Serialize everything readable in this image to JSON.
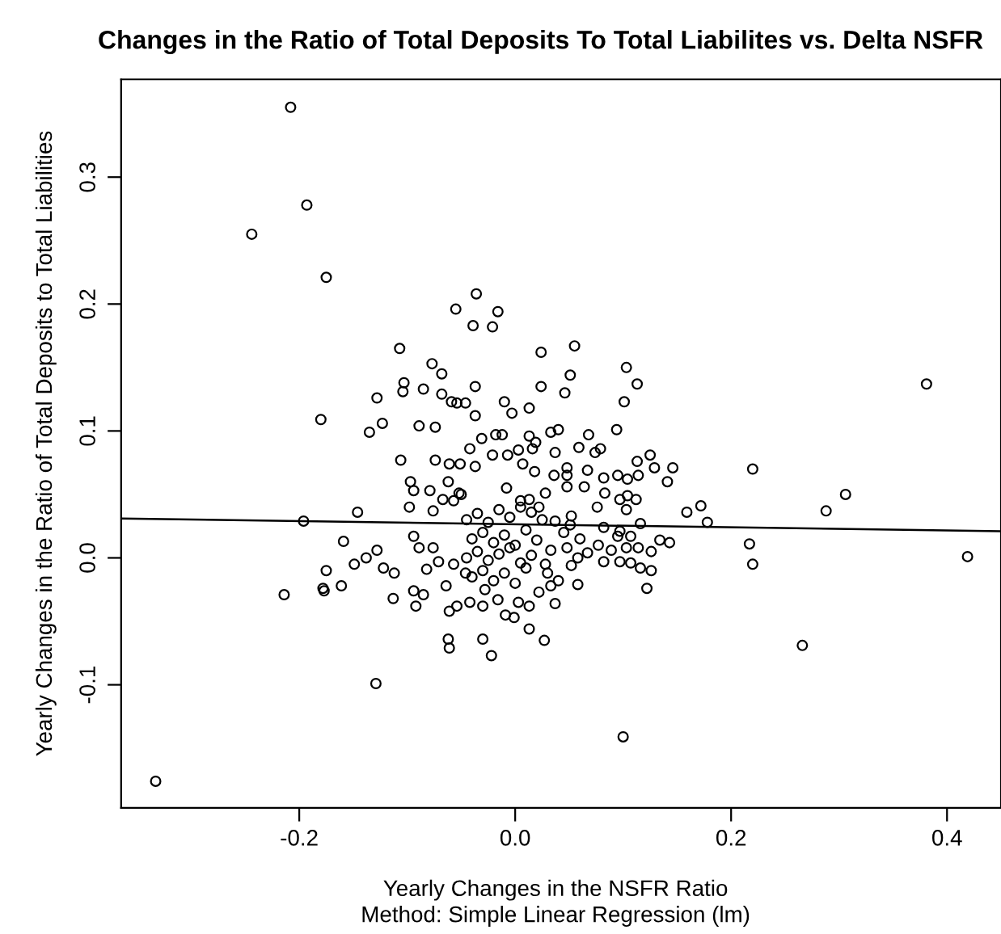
{
  "chart_data": {
    "type": "scatter",
    "title": "Changes in the Ratio of Total Deposits To Total Liabilites vs. Delta NSFR",
    "xlabel": "Yearly Changes in the NSFR Ratio",
    "ylabel": "Yearly Changes in the Ratio of Total Deposits to Total Liabilities",
    "annotations": [
      "Method: Simple Linear Regression (lm)"
    ],
    "xlim": [
      -0.365,
      0.45
    ],
    "ylim": [
      -0.197,
      0.377
    ],
    "xticks": [
      {
        "value": -0.2,
        "label": "-0.2"
      },
      {
        "value": 0,
        "label": "0.0"
      },
      {
        "value": 0.2,
        "label": "0.2"
      },
      {
        "value": 0.4,
        "label": "0.4"
      }
    ],
    "yticks": [
      {
        "value": -0.1,
        "label": "-0.1"
      },
      {
        "value": 0,
        "label": "0.0"
      },
      {
        "value": 0.1,
        "label": "0.1"
      },
      {
        "value": 0.2,
        "label": "0.2"
      },
      {
        "value": 0.3,
        "label": "0.3"
      }
    ],
    "grid": false,
    "legend": false,
    "marker": "circle",
    "series": [
      {
        "color": "#000000",
        "x": [
          -0.333,
          -0.244,
          -0.193,
          -0.208,
          -0.175,
          -0.18,
          -0.196,
          -0.214,
          -0.177,
          -0.129,
          0.266,
          0.1,
          0.381,
          0.419,
          0.306,
          0.288,
          0.22,
          0.217,
          0.22,
          -0.036,
          -0.055,
          -0.016,
          -0.039,
          -0.021,
          -0.107,
          -0.077,
          -0.068,
          -0.103,
          -0.104,
          -0.085,
          -0.068,
          -0.059,
          -0.054,
          -0.046,
          -0.037,
          -0.037,
          -0.01,
          -0.003,
          0.013,
          -0.128,
          -0.123,
          -0.135,
          -0.089,
          -0.074,
          -0.106,
          -0.074,
          -0.061,
          -0.051,
          -0.037,
          -0.031,
          -0.042,
          -0.018,
          -0.012,
          -0.021,
          -0.007,
          0.003,
          0.013,
          0.024,
          0.055,
          0.051,
          0.024,
          0.046,
          0.103,
          0.113,
          0.101,
          0.094,
          0.068,
          0.033,
          0.04,
          0.019,
          0.059,
          0.079,
          0.074,
          0.037,
          0.016,
          0.113,
          0.125,
          0.129,
          0.146,
          0.048,
          0.067,
          -0.146,
          -0.097,
          -0.094,
          -0.079,
          -0.067,
          -0.098,
          -0.076,
          -0.057,
          -0.052,
          -0.062,
          -0.159,
          -0.175,
          -0.178,
          -0.161,
          -0.149,
          -0.138,
          -0.128,
          -0.122,
          -0.112,
          -0.113,
          -0.094,
          -0.089,
          -0.076,
          -0.082,
          -0.094,
          -0.092,
          -0.085,
          -0.064,
          -0.061,
          -0.054,
          -0.062,
          -0.061,
          -0.022,
          -0.03,
          -0.009,
          -0.001,
          0.013,
          -0.042,
          -0.03,
          -0.016,
          0.003,
          -0.057,
          -0.046,
          -0.071,
          0.141,
          0.114,
          0.095,
          0.104,
          0.082,
          0.083,
          0.097,
          0.104,
          0.112,
          0.103,
          0.076,
          0.064,
          0.048,
          0.048,
          0.159,
          0.172,
          0.178,
          0.116,
          0.082,
          0.097,
          0.095,
          0.107,
          0.134,
          0.143,
          0.077,
          0.089,
          0.103,
          0.114,
          0.097,
          0.107,
          0.116,
          0.126,
          0.126,
          0.122,
          0.082,
          0.067,
          0.058,
          0.058,
          0.052,
          0.037,
          0.013,
          0.027,
          0.022,
          0.028,
          0.033,
          0.048,
          0.051,
          0.037,
          0.052,
          0.022,
          0.013,
          0.028,
          0.018,
          0.007,
          0.036,
          -0.045,
          -0.035,
          -0.025,
          -0.015,
          -0.005,
          0.005,
          0.015,
          -0.04,
          -0.03,
          -0.02,
          -0.01,
          0.0,
          0.01,
          0.02,
          -0.045,
          -0.035,
          -0.025,
          -0.015,
          -0.005,
          0.005,
          0.015,
          0.025,
          -0.04,
          -0.03,
          -0.02,
          -0.01,
          0.0,
          0.01,
          0.03,
          0.04,
          -0.05,
          -0.008,
          0.005,
          0.045,
          0.06,
          -0.028,
          0.033
        ],
        "values": [
          -0.176,
          0.255,
          0.278,
          0.355,
          0.221,
          0.109,
          0.029,
          -0.029,
          -0.026,
          -0.099,
          -0.069,
          -0.141,
          0.137,
          0.001,
          0.05,
          0.037,
          0.07,
          0.011,
          -0.005,
          0.208,
          0.196,
          0.194,
          0.183,
          0.182,
          0.165,
          0.153,
          0.145,
          0.138,
          0.131,
          0.133,
          0.129,
          0.123,
          0.122,
          0.122,
          0.135,
          0.112,
          0.123,
          0.114,
          0.118,
          0.126,
          0.106,
          0.099,
          0.104,
          0.103,
          0.077,
          0.077,
          0.074,
          0.074,
          0.072,
          0.094,
          0.086,
          0.097,
          0.097,
          0.081,
          0.081,
          0.085,
          0.096,
          0.162,
          0.167,
          0.144,
          0.135,
          0.13,
          0.15,
          0.137,
          0.123,
          0.101,
          0.097,
          0.099,
          0.101,
          0.091,
          0.087,
          0.086,
          0.083,
          0.083,
          0.086,
          0.076,
          0.081,
          0.071,
          0.071,
          0.071,
          0.069,
          0.036,
          0.06,
          0.053,
          0.053,
          0.046,
          0.04,
          0.037,
          0.045,
          0.051,
          0.06,
          0.013,
          -0.01,
          -0.024,
          -0.022,
          -0.005,
          0.0,
          0.006,
          -0.008,
          -0.012,
          -0.032,
          0.017,
          0.008,
          0.008,
          -0.009,
          -0.026,
          -0.038,
          -0.029,
          -0.022,
          -0.042,
          -0.038,
          -0.064,
          -0.071,
          -0.077,
          -0.064,
          -0.045,
          -0.047,
          -0.056,
          -0.035,
          -0.038,
          -0.033,
          -0.035,
          -0.005,
          -0.012,
          -0.003,
          0.06,
          0.065,
          0.065,
          0.062,
          0.063,
          0.051,
          0.046,
          0.049,
          0.046,
          0.038,
          0.04,
          0.056,
          0.065,
          0.056,
          0.036,
          0.041,
          0.028,
          0.027,
          0.024,
          0.021,
          0.017,
          0.017,
          0.014,
          0.012,
          0.01,
          0.006,
          0.008,
          0.008,
          -0.003,
          -0.004,
          -0.008,
          0.005,
          -0.01,
          -0.024,
          -0.003,
          0.004,
          0.0,
          -0.021,
          -0.006,
          -0.036,
          -0.038,
          -0.065,
          -0.027,
          -0.005,
          0.006,
          0.008,
          0.026,
          0.029,
          0.033,
          0.04,
          0.046,
          0.051,
          0.068,
          0.074,
          0.065,
          0.0,
          0.005,
          -0.002,
          0.003,
          0.008,
          -0.004,
          0.002,
          0.015,
          0.02,
          0.012,
          0.018,
          0.01,
          0.022,
          0.014,
          0.03,
          0.035,
          0.028,
          0.038,
          0.032,
          0.04,
          0.036,
          0.03,
          -0.015,
          -0.01,
          -0.018,
          -0.012,
          -0.02,
          -0.008,
          -0.012,
          -0.018,
          0.05,
          0.055,
          0.045,
          0.02,
          0.015,
          -0.025,
          -0.022
        ]
      },
      {
        "type": "line",
        "color": "#000000",
        "marker": "none",
        "x": [
          -0.365,
          0.45
        ],
        "values": [
          0.031,
          0.021
        ]
      }
    ]
  }
}
